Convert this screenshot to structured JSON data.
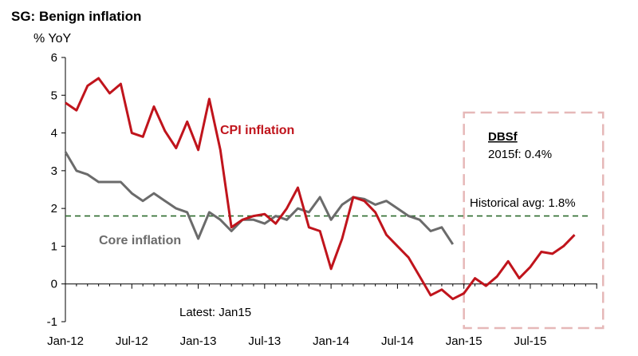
{
  "chart_data": {
    "type": "line",
    "title": "SG: Benign inflation",
    "ylabel": "% YoY",
    "ylim": [
      -1,
      6
    ],
    "yticks": [
      "6",
      "5",
      "4",
      "3",
      "2",
      "1",
      "0",
      "-1"
    ],
    "x_count": 48,
    "x_tick_labels": [
      {
        "label": "Jan-12",
        "index": 0
      },
      {
        "label": "Jul-12",
        "index": 6
      },
      {
        "label": "Jan-13",
        "index": 12
      },
      {
        "label": "Jul-13",
        "index": 18
      },
      {
        "label": "Jan-14",
        "index": 24
      },
      {
        "label": "Jul-14",
        "index": 30
      },
      {
        "label": "Jan-15",
        "index": 36
      },
      {
        "label": "Jul-15",
        "index": 42
      }
    ],
    "series": [
      {
        "name": "CPI inflation",
        "color": "#c0141c",
        "start_index": 0,
        "values": [
          4.8,
          4.6,
          5.25,
          5.45,
          5.05,
          5.3,
          4.0,
          3.9,
          4.7,
          4.05,
          3.6,
          4.3,
          3.55,
          4.9,
          3.55,
          1.5,
          1.7,
          1.8,
          1.85,
          1.6,
          2.0,
          2.55,
          1.5,
          1.4,
          0.4,
          1.2,
          2.3,
          2.2,
          1.9,
          1.3,
          1.0,
          0.7,
          0.2,
          -0.3,
          -0.15,
          -0.4,
          -0.25,
          0.15,
          -0.05,
          0.2,
          0.6,
          0.15,
          0.45,
          0.85,
          0.8,
          1.0,
          1.3
        ]
      },
      {
        "name": "Core inflation",
        "color": "#6b6b6b",
        "start_index": 0,
        "values": [
          3.5,
          3.0,
          2.9,
          2.7,
          2.7,
          2.7,
          2.4,
          2.2,
          2.4,
          2.2,
          2.0,
          1.9,
          1.2,
          1.9,
          1.7,
          1.4,
          1.7,
          1.7,
          1.6,
          1.8,
          1.7,
          2.0,
          1.9,
          2.3,
          1.7,
          2.1,
          2.3,
          2.25,
          2.1,
          2.2,
          2.0,
          1.8,
          1.7,
          1.4,
          1.5,
          1.05
        ]
      }
    ],
    "reference_line": {
      "label": "Historical avg: 1.8%",
      "value": 1.8,
      "color": "#2e6b2e"
    },
    "forecast": {
      "title": "DBSf",
      "text": "2015f: 0.4%",
      "start_index": 36,
      "end_index": 48,
      "color": "#e6b8b8"
    },
    "annotations": {
      "cpi_label": "CPI inflation",
      "core_label": "Core inflation",
      "latest": "Latest: Jan15"
    }
  }
}
